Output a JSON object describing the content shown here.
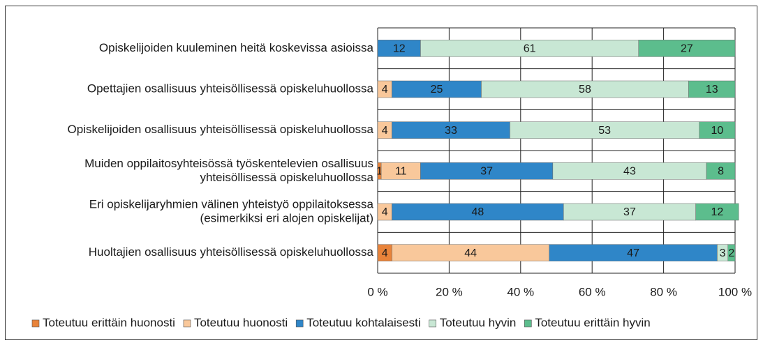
{
  "chart_data": {
    "type": "stacked-barh",
    "categories": [
      [
        "Opiskelijoiden kuuleminen heitä koskevissa asioissa"
      ],
      [
        "Opettajien osallisuus yhteisöllisessä opiskeluhuollossa"
      ],
      [
        "Opiskelijoiden osallisuus yhteisöllisessä opiskeluhuollossa"
      ],
      [
        "Muiden oppilaitosyhteisössä työskentelevien osallisuus",
        "yhteisöllisessä opiskeluhuollossa"
      ],
      [
        "Eri opiskelijaryhmien välinen yhteistyö oppilaitoksessa",
        "(esimerkiksi eri alojen opiskelijat)"
      ],
      [
        "Huoltajien osallisuus yhteisöllisessä opiskeluhuollossa"
      ]
    ],
    "series": [
      {
        "name": "Toteutuu erittäin huonosti",
        "color": "#e8833a",
        "values": [
          null,
          null,
          null,
          1,
          null,
          4
        ]
      },
      {
        "name": "Toteutuu huonosti",
        "color": "#f9c89b",
        "values": [
          null,
          4,
          4,
          11,
          4,
          44
        ]
      },
      {
        "name": "Toteutuu kohtalaisesti",
        "color": "#2f86c8",
        "values": [
          12,
          25,
          33,
          37,
          48,
          47
        ]
      },
      {
        "name": "Toteutuu hyvin",
        "color": "#c8e7d4",
        "values": [
          61,
          58,
          53,
          43,
          37,
          3
        ]
      },
      {
        "name": "Toteutuu erittäin hyvin",
        "color": "#5cbd8d",
        "values": [
          27,
          13,
          10,
          8,
          12,
          2
        ]
      }
    ],
    "xlim": [
      0,
      100
    ],
    "xticks": [
      {
        "value": 0,
        "label": "0 %"
      },
      {
        "value": 20,
        "label": "20 %"
      },
      {
        "value": 40,
        "label": "40 %"
      },
      {
        "value": 60,
        "label": "60 %"
      },
      {
        "value": 80,
        "label": "80 %"
      },
      {
        "value": 100,
        "label": "100 %"
      }
    ],
    "grid": true,
    "legend": "bottom"
  }
}
